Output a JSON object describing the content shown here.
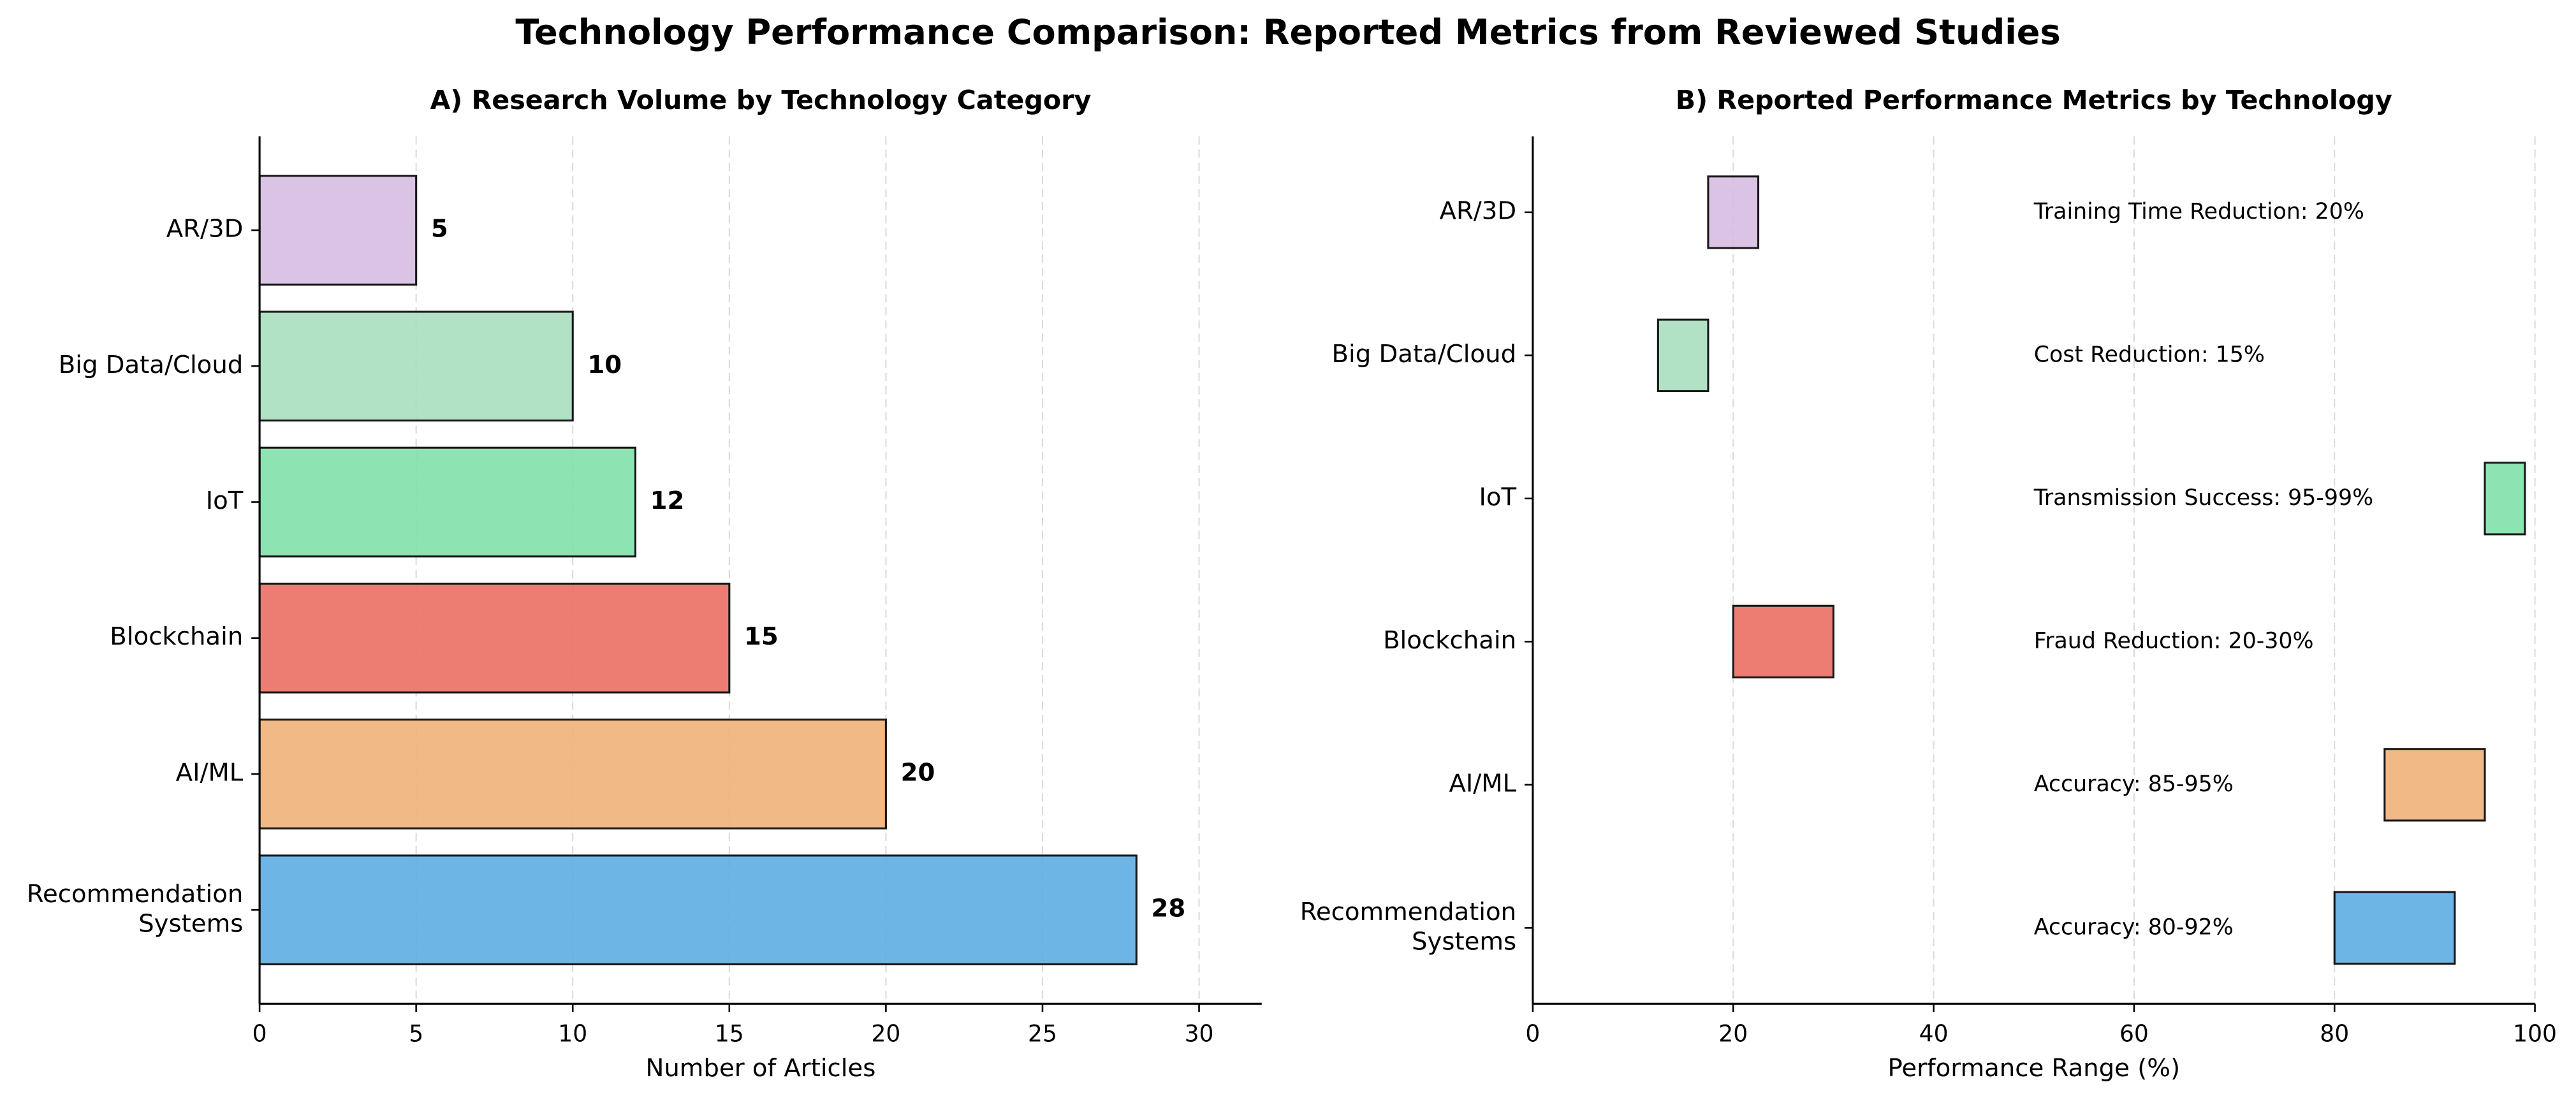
{
  "title": "Technology Performance Comparison: Reported Metrics from Reviewed Studies",
  "chart_data": [
    {
      "type": "hbar",
      "title": "A) Research Volume by Technology Category",
      "categories": [
        "Recommendation\nSystems",
        "AI/ML",
        "Blockchain",
        "IoT",
        "Big Data/Cloud",
        "AR/3D"
      ],
      "values": [
        28,
        20,
        15,
        12,
        10,
        5
      ],
      "colors": [
        "#5dade2",
        "#f0b27a",
        "#ec7063",
        "#82e0aa",
        "#a9dfbf",
        "#d7bde2"
      ],
      "xlim": [
        0,
        32
      ],
      "xticks": [
        0,
        5,
        10,
        15,
        20,
        25,
        30
      ],
      "xlabel": "Number of Articles",
      "grid": true
    },
    {
      "type": "range",
      "title": "B) Reported Performance Metrics by Technology",
      "categories": [
        "Recommendation\nSystems",
        "AI/ML",
        "Blockchain",
        "IoT",
        "Big Data/Cloud",
        "AR/3D"
      ],
      "starts": [
        80,
        85,
        20,
        95,
        12.5,
        17.5
      ],
      "ends": [
        92,
        95,
        30,
        99,
        17.5,
        22.5
      ],
      "annotations": [
        "Accuracy: 80-92%",
        "Accuracy: 85-95%",
        "Fraud Reduction: 20-30%",
        "Transmission Success: 95-99%",
        "Cost Reduction: 15%",
        "Training Time Reduction: 20%"
      ],
      "colors": [
        "#5dade2",
        "#f0b27a",
        "#ec7063",
        "#82e0aa",
        "#a9dfbf",
        "#d7bde2"
      ],
      "xlim": [
        0,
        100
      ],
      "xticks": [
        0,
        20,
        40,
        60,
        80,
        100
      ],
      "xlabel": "Performance Range (%)",
      "grid": true
    }
  ]
}
